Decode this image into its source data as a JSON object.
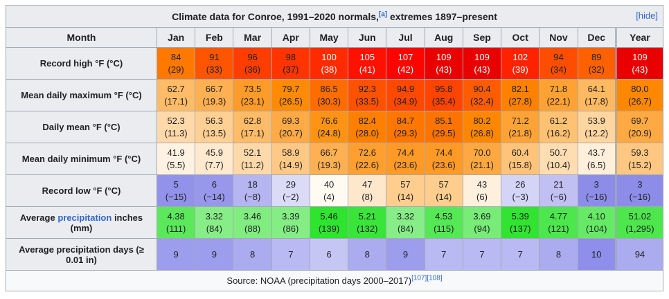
{
  "title": {
    "text": "Climate data for Conroe, 1991–2020 normals,",
    "note": "[a]",
    "text2": " extremes 1897–present",
    "hide": "[hide]"
  },
  "columns": [
    "Month",
    "Jan",
    "Feb",
    "Mar",
    "Apr",
    "May",
    "Jun",
    "Jul",
    "Aug",
    "Sep",
    "Oct",
    "Nov",
    "Dec",
    "Year"
  ],
  "rows": [
    {
      "id": "record-high",
      "label": "Record high °F (°C)",
      "cells": [
        {
          "v": "84",
          "s": "(29)",
          "bg": "#FF7900"
        },
        {
          "v": "91",
          "s": "(33)",
          "bg": "#FF5500"
        },
        {
          "v": "96",
          "s": "(36)",
          "bg": "#FF3D00"
        },
        {
          "v": "98",
          "s": "(37)",
          "bg": "#FF3400"
        },
        {
          "v": "100",
          "s": "(38)",
          "bg": "#FF2B00",
          "fg": "#FFFFFF"
        },
        {
          "v": "105",
          "s": "(41)",
          "bg": "#FF1100",
          "fg": "#FFFFFF"
        },
        {
          "v": "107",
          "s": "(42)",
          "bg": "#FA0500",
          "fg": "#FFFFFF"
        },
        {
          "v": "109",
          "s": "(43)",
          "bg": "#E90000",
          "fg": "#FFFFFF"
        },
        {
          "v": "109",
          "s": "(43)",
          "bg": "#E90000",
          "fg": "#FFFFFF"
        },
        {
          "v": "102",
          "s": "(39)",
          "bg": "#FF2200",
          "fg": "#FFFFFF"
        },
        {
          "v": "94",
          "s": "(34)",
          "bg": "#FF4D00"
        },
        {
          "v": "89",
          "s": "(32)",
          "bg": "#FF6100"
        },
        {
          "v": "109",
          "s": "(43)",
          "bg": "#E90000",
          "fg": "#FFFFFF"
        }
      ]
    },
    {
      "id": "mean-daily-maximum",
      "label": "Mean daily maximum °F (°C)",
      "cells": [
        {
          "v": "62.7",
          "s": "(17.1)",
          "bg": "#FFBC68"
        },
        {
          "v": "66.7",
          "s": "(19.3)",
          "bg": "#FFB052"
        },
        {
          "v": "73.5",
          "s": "(23.1)",
          "bg": "#FF9C29"
        },
        {
          "v": "79.7",
          "s": "(26.5)",
          "bg": "#FF8A04"
        },
        {
          "v": "86.5",
          "s": "(30.3)",
          "bg": "#FF6D00"
        },
        {
          "v": "92.3",
          "s": "(33.5)",
          "bg": "#FF5200"
        },
        {
          "v": "94.9",
          "s": "(34.9)",
          "bg": "#FF4800"
        },
        {
          "v": "95.8",
          "s": "(35.4)",
          "bg": "#FF4400"
        },
        {
          "v": "90.4",
          "s": "(32.4)",
          "bg": "#FF5C00"
        },
        {
          "v": "82.1",
          "s": "(27.8)",
          "bg": "#FF8100"
        },
        {
          "v": "71.8",
          "s": "(22.1)",
          "bg": "#FFA234"
        },
        {
          "v": "64.1",
          "s": "(17.8)",
          "bg": "#FFB961"
        },
        {
          "v": "80.0",
          "s": "(26.7)",
          "bg": "#FF8802"
        }
      ]
    },
    {
      "id": "daily-mean",
      "label": "Daily mean °F (°C)",
      "cells": [
        {
          "v": "52.3",
          "s": "(11.3)",
          "bg": "#FFD9A9"
        },
        {
          "v": "56.3",
          "s": "(13.5)",
          "bg": "#FFD094"
        },
        {
          "v": "62.8",
          "s": "(17.1)",
          "bg": "#FFBC68"
        },
        {
          "v": "69.3",
          "s": "(20.7)",
          "bg": "#FFAA44"
        },
        {
          "v": "76.6",
          "s": "(24.8)",
          "bg": "#FF9314"
        },
        {
          "v": "82.4",
          "s": "(28.0)",
          "bg": "#FF7F00"
        },
        {
          "v": "84.7",
          "s": "(29.3)",
          "bg": "#FF7600"
        },
        {
          "v": "85.1",
          "s": "(29.5)",
          "bg": "#FF7400"
        },
        {
          "v": "80.2",
          "s": "(26.8)",
          "bg": "#FF8700"
        },
        {
          "v": "71.2",
          "s": "(21.8)",
          "bg": "#FFA336"
        },
        {
          "v": "61.2",
          "s": "(16.2)",
          "bg": "#FFC172"
        },
        {
          "v": "53.9",
          "s": "(12.2)",
          "bg": "#FFD5A0"
        },
        {
          "v": "69.7",
          "s": "(20.9)",
          "bg": "#FFA942"
        }
      ]
    },
    {
      "id": "mean-daily-minimum",
      "label": "Mean daily minimum °F (°C)",
      "cells": [
        {
          "v": "41.9",
          "s": "(5.5)",
          "bg": "#FFF2E2"
        },
        {
          "v": "45.9",
          "s": "(7.7)",
          "bg": "#FFE9CF"
        },
        {
          "v": "52.1",
          "s": "(11.2)",
          "bg": "#FFD9AA"
        },
        {
          "v": "58.9",
          "s": "(14.9)",
          "bg": "#FFC985"
        },
        {
          "v": "66.7",
          "s": "(19.3)",
          "bg": "#FFB052"
        },
        {
          "v": "72.6",
          "s": "(22.6)",
          "bg": "#FF9F30"
        },
        {
          "v": "74.4",
          "s": "(23.6)",
          "bg": "#FF9A26"
        },
        {
          "v": "74.4",
          "s": "(23.6)",
          "bg": "#FF9A26"
        },
        {
          "v": "70.0",
          "s": "(21.1)",
          "bg": "#FFA841"
        },
        {
          "v": "60.4",
          "s": "(15.8)",
          "bg": "#FFC47A"
        },
        {
          "v": "50.7",
          "s": "(10.4)",
          "bg": "#FFDDB2"
        },
        {
          "v": "43.7",
          "s": "(6.5)",
          "bg": "#FFEFDB"
        },
        {
          "v": "59.3",
          "s": "(15.2)",
          "bg": "#FFC781"
        }
      ]
    },
    {
      "id": "record-low",
      "label": "Record low °F (°C)",
      "cells": [
        {
          "v": "5",
          "s": "(−15)",
          "bg": "#9292EA"
        },
        {
          "v": "6",
          "s": "(−14)",
          "bg": "#9797EB"
        },
        {
          "v": "18",
          "s": "(−8)",
          "bg": "#B5B5F1"
        },
        {
          "v": "29",
          "s": "(−2)",
          "bg": "#DBDBF8"
        },
        {
          "v": "40",
          "s": "(4)",
          "bg": "#FFFAF2"
        },
        {
          "v": "47",
          "s": "(8)",
          "bg": "#FFE7CB"
        },
        {
          "v": "57",
          "s": "(14)",
          "bg": "#FFCE8F"
        },
        {
          "v": "57",
          "s": "(14)",
          "bg": "#FFCE8F"
        },
        {
          "v": "43",
          "s": "(6)",
          "bg": "#FFF0DE"
        },
        {
          "v": "26",
          "s": "(−3)",
          "bg": "#D4D4F6"
        },
        {
          "v": "21",
          "s": "(−6)",
          "bg": "#C0C0F3"
        },
        {
          "v": "3",
          "s": "(−16)",
          "bg": "#8D8DE9"
        },
        {
          "v": "3",
          "s": "(−16)",
          "bg": "#8D8DE9"
        }
      ]
    },
    {
      "id": "avg-precipitation",
      "label_parts": [
        {
          "t": "Average "
        },
        {
          "t": "precipitation",
          "link": true
        },
        {
          "t": " inches (mm)"
        }
      ],
      "cells": [
        {
          "v": "4.38",
          "s": "(111)",
          "bg": "#5BE95B"
        },
        {
          "v": "3.32",
          "s": "(84)",
          "bg": "#87EE87"
        },
        {
          "v": "3.46",
          "s": "(88)",
          "bg": "#81ED81"
        },
        {
          "v": "3.39",
          "s": "(86)",
          "bg": "#84EE84"
        },
        {
          "v": "5.46",
          "s": "(139)",
          "bg": "#2EE42E"
        },
        {
          "v": "5.21",
          "s": "(132)",
          "bg": "#3AE53A"
        },
        {
          "v": "3.32",
          "s": "(84)",
          "bg": "#87EE87"
        },
        {
          "v": "4.53",
          "s": "(115)",
          "bg": "#55E855"
        },
        {
          "v": "3.69",
          "s": "(94)",
          "bg": "#77EC77"
        },
        {
          "v": "5.39",
          "s": "(137)",
          "bg": "#31E431"
        },
        {
          "v": "4.77",
          "s": "(121)",
          "bg": "#4CE74C"
        },
        {
          "v": "4.10",
          "s": "(104)",
          "bg": "#66EA66"
        },
        {
          "v": "51.02",
          "s": "(1,295)",
          "bg": "#4DE74D"
        }
      ]
    },
    {
      "id": "avg-precipitation-days",
      "label": "Average precipitation days (≥ 0.01 in)",
      "cells": [
        {
          "v": "9",
          "bg": "#9D9DEE"
        },
        {
          "v": "9",
          "bg": "#9D9DEE"
        },
        {
          "v": "8",
          "bg": "#ABABF0"
        },
        {
          "v": "7",
          "bg": "#B9B9F3"
        },
        {
          "v": "6",
          "bg": "#C6C6F5"
        },
        {
          "v": "8",
          "bg": "#ABABF0"
        },
        {
          "v": "9",
          "bg": "#9D9DEE"
        },
        {
          "v": "7",
          "bg": "#B9B9F3"
        },
        {
          "v": "7",
          "bg": "#B9B9F3"
        },
        {
          "v": "7",
          "bg": "#B9B9F3"
        },
        {
          "v": "8",
          "bg": "#ABABF0"
        },
        {
          "v": "10",
          "bg": "#8F8FEB"
        },
        {
          "v": "94",
          "bg": "#ABABF0"
        }
      ]
    }
  ],
  "footer": {
    "text": "Source: NOAA (precipitation days 2000–2017)",
    "refs": [
      "[107]",
      "[108]"
    ]
  },
  "colors": {
    "link": "#3366CC",
    "header_bg": "#EAECF0",
    "border": "#A2A9B1",
    "footer_bg": "#F8F9FA"
  },
  "chart_data": {
    "type": "table",
    "title": "Climate data for Conroe, 1991–2020 normals, extremes 1897–present",
    "categories": [
      "Jan",
      "Feb",
      "Mar",
      "Apr",
      "May",
      "Jun",
      "Jul",
      "Aug",
      "Sep",
      "Oct",
      "Nov",
      "Dec"
    ],
    "series": [
      {
        "name": "Record high °F",
        "values": [
          84,
          91,
          96,
          98,
          100,
          105,
          107,
          109,
          109,
          102,
          94,
          89
        ],
        "year": 109
      },
      {
        "name": "Record high °C",
        "values": [
          29,
          33,
          36,
          37,
          38,
          41,
          42,
          43,
          43,
          39,
          34,
          32
        ],
        "year": 43
      },
      {
        "name": "Mean daily maximum °F",
        "values": [
          62.7,
          66.7,
          73.5,
          79.7,
          86.5,
          92.3,
          94.9,
          95.8,
          90.4,
          82.1,
          71.8,
          64.1
        ],
        "year": 80.0
      },
      {
        "name": "Mean daily maximum °C",
        "values": [
          17.1,
          19.3,
          23.1,
          26.5,
          30.3,
          33.5,
          34.9,
          35.4,
          32.4,
          27.8,
          22.1,
          17.8
        ],
        "year": 26.7
      },
      {
        "name": "Daily mean °F",
        "values": [
          52.3,
          56.3,
          62.8,
          69.3,
          76.6,
          82.4,
          84.7,
          85.1,
          80.2,
          71.2,
          61.2,
          53.9
        ],
        "year": 69.7
      },
      {
        "name": "Daily mean °C",
        "values": [
          11.3,
          13.5,
          17.1,
          20.7,
          24.8,
          28.0,
          29.3,
          29.5,
          26.8,
          21.8,
          16.2,
          12.2
        ],
        "year": 20.9
      },
      {
        "name": "Mean daily minimum °F",
        "values": [
          41.9,
          45.9,
          52.1,
          58.9,
          66.7,
          72.6,
          74.4,
          74.4,
          70.0,
          60.4,
          50.7,
          43.7
        ],
        "year": 59.3
      },
      {
        "name": "Mean daily minimum °C",
        "values": [
          5.5,
          7.7,
          11.2,
          14.9,
          19.3,
          22.6,
          23.6,
          23.6,
          21.1,
          15.8,
          10.4,
          6.5
        ],
        "year": 15.2
      },
      {
        "name": "Record low °F",
        "values": [
          5,
          6,
          18,
          29,
          40,
          47,
          57,
          57,
          43,
          26,
          21,
          3
        ],
        "year": 3
      },
      {
        "name": "Record low °C",
        "values": [
          -15,
          -14,
          -8,
          -2,
          4,
          8,
          14,
          14,
          6,
          -3,
          -6,
          -16
        ],
        "year": -16
      },
      {
        "name": "Average precipitation inches",
        "values": [
          4.38,
          3.32,
          3.46,
          3.39,
          5.46,
          5.21,
          3.32,
          4.53,
          3.69,
          5.39,
          4.77,
          4.1
        ],
        "year": 51.02
      },
      {
        "name": "Average precipitation mm",
        "values": [
          111,
          84,
          88,
          86,
          139,
          132,
          84,
          115,
          94,
          137,
          121,
          104
        ],
        "year": 1295
      },
      {
        "name": "Average precipitation days (≥ 0.01 in)",
        "values": [
          9,
          9,
          8,
          7,
          6,
          8,
          9,
          7,
          7,
          7,
          8,
          10
        ],
        "year": 94
      }
    ],
    "source": "Source: NOAA (precipitation days 2000–2017)"
  }
}
